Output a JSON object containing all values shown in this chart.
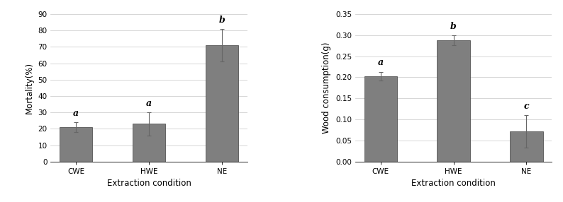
{
  "chart1": {
    "categories": [
      "CWE",
      "HWE",
      "NE"
    ],
    "values": [
      21.0,
      23.0,
      71.0
    ],
    "errors": [
      3.0,
      7.0,
      10.0
    ],
    "letters": [
      "a",
      "a",
      "b"
    ],
    "ylabel": "Mortality(%)",
    "xlabel": "Extraction condition",
    "ylim": [
      0,
      90
    ],
    "yticks": [
      0,
      10,
      20,
      30,
      40,
      50,
      60,
      70,
      80,
      90
    ],
    "bar_color": "#7f7f7f",
    "bar_edgecolor": "#3f3f3f"
  },
  "chart2": {
    "categories": [
      "CWE",
      "HWE",
      "NE"
    ],
    "values": [
      0.203,
      0.288,
      0.072
    ],
    "errors": [
      0.01,
      0.012,
      0.038
    ],
    "letters": [
      "a",
      "b",
      "c"
    ],
    "ylabel": "Wood consumption(g)",
    "xlabel": "Extraction condition",
    "ylim": [
      0.0,
      0.35
    ],
    "yticks": [
      0.0,
      0.05,
      0.1,
      0.15,
      0.2,
      0.25,
      0.3,
      0.35
    ],
    "bar_color": "#7f7f7f",
    "bar_edgecolor": "#3f3f3f"
  },
  "background_color": "#ffffff",
  "grid_color": "#d0d0d0",
  "tick_fontsize": 7.5,
  "label_fontsize": 8.5,
  "letter_fontsize": 9
}
